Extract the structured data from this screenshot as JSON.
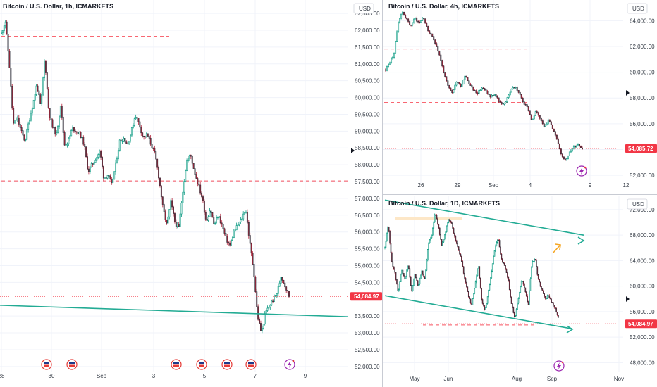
{
  "colors": {
    "up": "#089981",
    "down": "#f23645",
    "candle_dark": "#2a2e39",
    "candle_down_fill": "#b2243a",
    "trendline": "#22ab94",
    "support": "#f7525f",
    "price_tag": "#f23645",
    "arrow_orange": "#f5a623",
    "event_icon": "#e53935",
    "flash_icon": "#9c27b0"
  },
  "icons": [
    "flag-event-icon",
    "lightning-icon",
    "arrow-right-icon",
    "arrow-up-right-icon",
    "price-marker-icon"
  ],
  "chart_data": [
    {
      "type": "candlestick",
      "title": "Bitcoin / U.S. Dollar, 1h, ICMARKETS",
      "currency": "USD",
      "last_price": "54,084.97",
      "y_ticks": [
        "62,500.00",
        "62,000.00",
        "61,500.00",
        "61,000.00",
        "60,500.00",
        "60,000.00",
        "59,500.00",
        "59,000.00",
        "58,500.00",
        "58,000.00",
        "57,500.00",
        "57,000.00",
        "56,500.00",
        "56,000.00",
        "55,500.00",
        "55,000.00",
        "54,500.00",
        "53,500.00",
        "53,000.00",
        "52,500.00",
        "52,000.00"
      ],
      "x_ticks": [
        "28",
        "30",
        "Sep",
        "3",
        "5",
        "7",
        "9"
      ],
      "ylim": [
        51850,
        62900
      ],
      "support_levels": [
        61820,
        57520
      ],
      "price_line": 54085,
      "trendline": {
        "from": [
          "28",
          53820
        ],
        "to": [
          "9",
          53480
        ]
      },
      "series_path": [
        61900,
        62300,
        61000,
        59200,
        59400,
        59000,
        58700,
        59300,
        59800,
        60400,
        59700,
        61200,
        59600,
        59100,
        58900,
        59800,
        58600,
        58700,
        59100,
        59000,
        58900,
        58600,
        57800,
        58000,
        58200,
        58400,
        57600,
        57700,
        57400,
        58000,
        58700,
        58800,
        58600,
        59000,
        59500,
        59200,
        58800,
        58900,
        58600,
        58300,
        57600,
        56700,
        56200,
        56900,
        56300,
        56100,
        57200,
        58100,
        58300,
        57800,
        57400,
        57000,
        56300,
        56700,
        56200,
        56500,
        56200,
        55800,
        55600,
        56000,
        56200,
        56400,
        56700,
        55700,
        54900,
        53500,
        53000,
        53600,
        53800,
        54000,
        54200,
        54700,
        54400,
        54100
      ]
    },
    {
      "type": "candlestick",
      "title": "Bitcoin / U.S. Dollar, 4h, ICMARKETS",
      "currency": "USD",
      "last_price": "54,085.72",
      "y_ticks": [
        "64,000.00",
        "62,000.00",
        "60,000.00",
        "58,000.00",
        "56,000.00",
        "54,000.00",
        "52,000.00"
      ],
      "x_ticks": [
        "26",
        "29",
        "Sep",
        "4",
        "9",
        "12"
      ],
      "ylim": [
        51300,
        65600
      ],
      "support_levels": [
        61800,
        57650
      ],
      "price_line": 54085,
      "series_path": [
        60200,
        60800,
        61400,
        63900,
        64700,
        64100,
        63600,
        64200,
        63800,
        64300,
        63300,
        62800,
        62200,
        61200,
        59800,
        58800,
        58400,
        59400,
        58900,
        59800,
        59100,
        58600,
        58400,
        58800,
        58500,
        58100,
        58300,
        57800,
        57400,
        57900,
        58700,
        58900,
        58300,
        57600,
        57200,
        56200,
        57000,
        56400,
        55800,
        56300,
        55600,
        54700,
        53500,
        53200,
        53800,
        54200,
        54400,
        54100
      ]
    },
    {
      "type": "candlestick",
      "title": "Bitcoin / U.S. Dollar, 1D, ICMARKETS",
      "currency": "USD",
      "last_price": "54,084.97",
      "y_ticks": [
        "72,000.00",
        "68,000.00",
        "64,000.00",
        "60,000.00",
        "56,000.00",
        "52,000.00",
        "48,000.00"
      ],
      "x_ticks": [
        "May",
        "Jun",
        "Aug",
        "Sep",
        "Nov"
      ],
      "ylim": [
        46600,
        74200
      ],
      "support_levels": [
        53900
      ],
      "channel": {
        "upper": [
          [
            "Apr",
            73500
          ],
          [
            "Nov",
            68000
          ]
        ],
        "lower": [
          [
            "Apr",
            58500
          ],
          [
            "Sep",
            53300
          ]
        ]
      },
      "price_line": 54085,
      "series_path": [
        66000,
        69500,
        64000,
        62000,
        59000,
        62500,
        61000,
        63500,
        59000,
        62000,
        60000,
        62500,
        61000,
        66500,
        68000,
        71500,
        69500,
        66500,
        68000,
        70500,
        70000,
        67500,
        66000,
        64000,
        61000,
        58500,
        57000,
        60000,
        63500,
        58000,
        56000,
        59000,
        62500,
        66000,
        67500,
        64000,
        63000,
        61000,
        57000,
        55000,
        58000,
        61000,
        59500,
        57000,
        63500,
        64500,
        61000,
        59500,
        58000,
        58500,
        57500,
        56500,
        55000
      ]
    }
  ]
}
